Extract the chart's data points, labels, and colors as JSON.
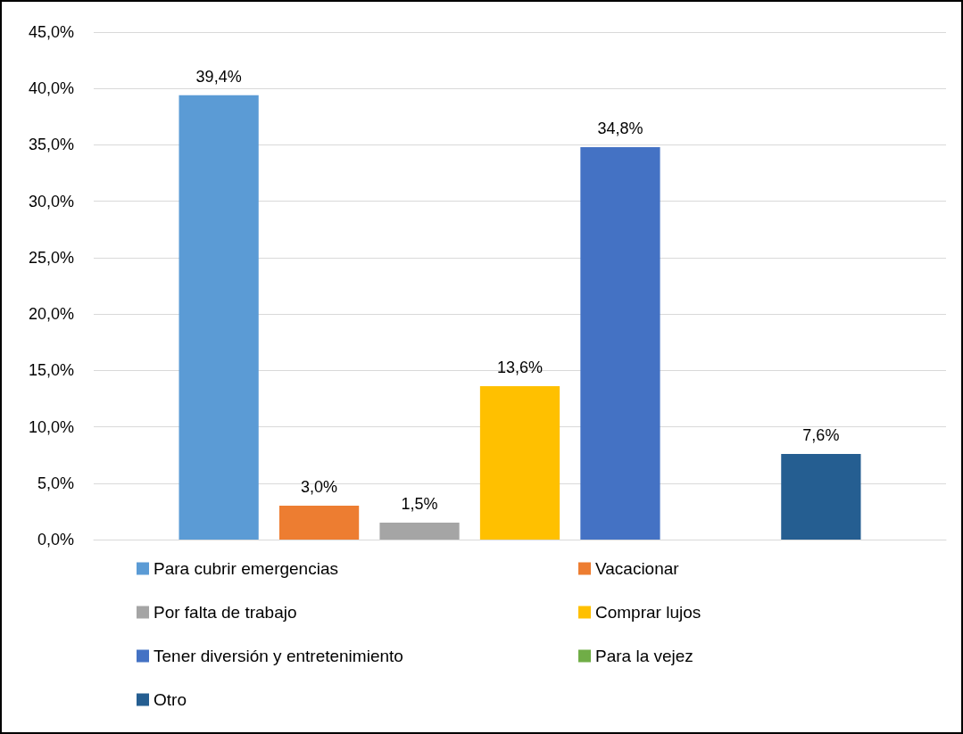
{
  "chart_data": {
    "type": "bar",
    "categories": [
      null
    ],
    "series": [
      {
        "name": "Para cubrir emergencias",
        "color": "#5b9bd5",
        "values": [
          39.4
        ],
        "value_labels": [
          "39,4%"
        ]
      },
      {
        "name": "Vacacionar",
        "color": "#ed7d31",
        "values": [
          3.0
        ],
        "value_labels": [
          "3,0%"
        ]
      },
      {
        "name": "Por falta de trabajo",
        "color": "#a5a5a5",
        "values": [
          1.5
        ],
        "value_labels": [
          "1,5%"
        ]
      },
      {
        "name": "Comprar lujos",
        "color": "#ffc000",
        "values": [
          13.6
        ],
        "value_labels": [
          "13,6%"
        ]
      },
      {
        "name": "Tener diversión y entretenimiento",
        "color": "#4472c4",
        "values": [
          34.8
        ],
        "value_labels": [
          "34,8%"
        ]
      },
      {
        "name": "Para la vejez",
        "color": "#70ad47",
        "values": [
          null
        ],
        "value_labels": [
          null
        ]
      },
      {
        "name": "Otro",
        "color": "#255e91",
        "values": [
          7.6
        ],
        "value_labels": [
          "7,6%"
        ]
      }
    ],
    "ylim": [
      0,
      45
    ],
    "yticks": [
      {
        "value": 0,
        "label": "0,0%"
      },
      {
        "value": 5,
        "label": "5,0%"
      },
      {
        "value": 10,
        "label": "10,0%"
      },
      {
        "value": 15,
        "label": "15,0%"
      },
      {
        "value": 20,
        "label": "20,0%"
      },
      {
        "value": 25,
        "label": "25,0%"
      },
      {
        "value": 30,
        "label": "30,0%"
      },
      {
        "value": 35,
        "label": "35,0%"
      },
      {
        "value": 40,
        "label": "40,0%"
      },
      {
        "value": 45,
        "label": "45,0%"
      }
    ],
    "grid": "y",
    "legend": "bottom"
  }
}
